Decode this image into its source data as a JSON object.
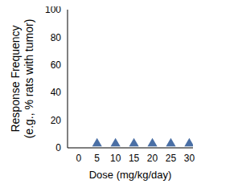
{
  "chart_data": {
    "type": "scatter",
    "xlabel": "Dose (mg/kg/day)",
    "ylabel": [
      "Response Frequency",
      "(e.g., % rats with tumor)"
    ],
    "x": [
      5,
      10,
      15,
      20,
      25,
      30
    ],
    "values": [
      3,
      3,
      3,
      3,
      3,
      3
    ],
    "color": "#4a6fa5",
    "marker": "triangle",
    "xlim": [
      -3,
      31
    ],
    "xticks": [
      0,
      5,
      10,
      15,
      20,
      25,
      30
    ],
    "ylim": [
      0,
      100
    ],
    "yticks": [
      0,
      20,
      40,
      60,
      80,
      100
    ],
    "grid": false
  }
}
